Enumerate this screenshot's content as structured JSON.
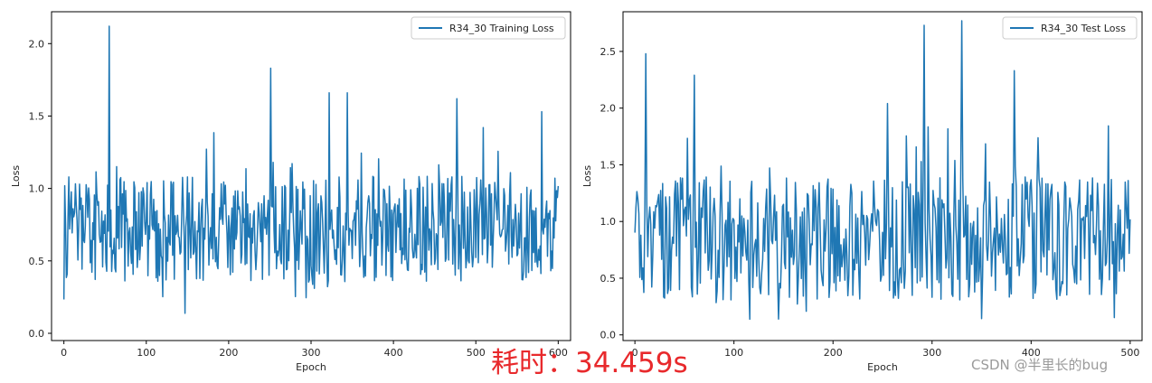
{
  "chart_data": [
    {
      "type": "line",
      "xlabel": "Epoch",
      "ylabel": "Loss",
      "xlim": [
        -15,
        615
      ],
      "ylim": [
        -0.05,
        2.22
      ],
      "xticks": [
        0,
        100,
        200,
        300,
        400,
        500,
        600
      ],
      "yticks": [
        0.0,
        0.5,
        1.0,
        1.5,
        2.0
      ],
      "ytick_labels": [
        "0.0",
        "0.5",
        "1.0",
        "1.5",
        "2.0"
      ],
      "legend_position": "top-right",
      "series": [
        {
          "name": "R34_30 Training Loss",
          "color": "#1f77b4",
          "x_start": 0,
          "x_step": 1,
          "num_points": 601,
          "values_shown_as_noisy_signal": true,
          "baseline_mean": 0.72,
          "spread": 0.28,
          "min_value": 0.05,
          "peaks": [
            {
              "x": 55,
              "y": 2.12
            },
            {
              "x": 251,
              "y": 1.83
            },
            {
              "x": 322,
              "y": 1.66
            },
            {
              "x": 344,
              "y": 1.66
            },
            {
              "x": 477,
              "y": 1.62
            },
            {
              "x": 580,
              "y": 1.53
            }
          ]
        }
      ]
    },
    {
      "type": "line",
      "xlabel": "Epoch",
      "ylabel": "Loss",
      "xlim": [
        -12,
        512
      ],
      "ylim": [
        -0.05,
        2.85
      ],
      "xticks": [
        0,
        100,
        200,
        300,
        400,
        500
      ],
      "yticks": [
        0.0,
        0.5,
        1.0,
        1.5,
        2.0,
        2.5
      ],
      "ytick_labels": [
        "0.0",
        "0.5",
        "1.0",
        "1.5",
        "2.0",
        "2.5"
      ],
      "legend_position": "top-right",
      "series": [
        {
          "name": "R34_30 Test Loss",
          "color": "#1f77b4",
          "x_start": 0,
          "x_step": 1,
          "num_points": 501,
          "values_shown_as_noisy_signal": true,
          "baseline_mean": 0.85,
          "spread": 0.42,
          "min_value": 0.11,
          "peaks": [
            {
              "x": 11,
              "y": 2.48
            },
            {
              "x": 60,
              "y": 2.29
            },
            {
              "x": 292,
              "y": 2.73
            },
            {
              "x": 330,
              "y": 2.77
            },
            {
              "x": 383,
              "y": 2.33
            },
            {
              "x": 255,
              "y": 2.04
            }
          ]
        }
      ]
    }
  ],
  "overlay": {
    "elapsed_time": "耗时：34.459s",
    "watermark": "CSDN @半里长的bug"
  }
}
